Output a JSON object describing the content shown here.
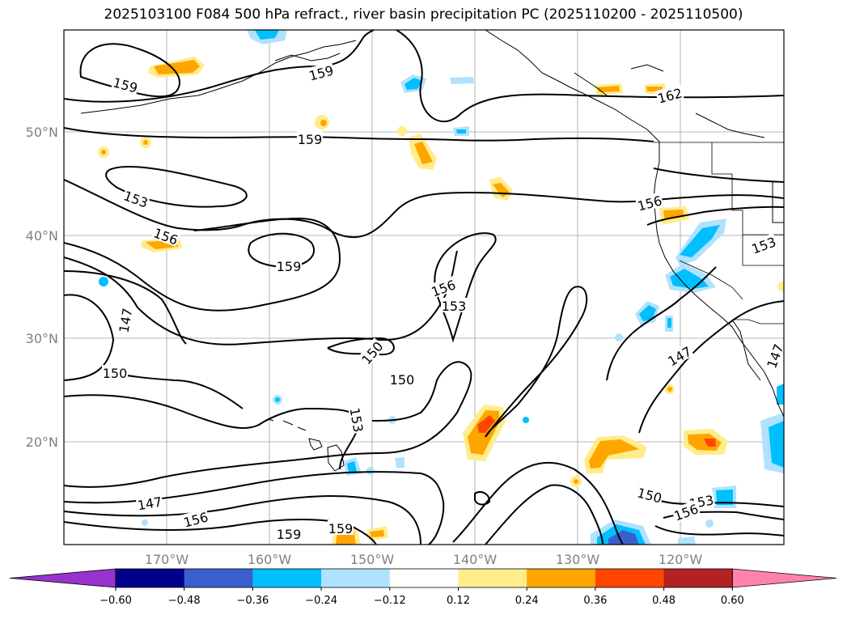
{
  "title": "2025103100 F084 500 hPa refract., river basin precipitation PC (2025110200 - 2025110500)",
  "lat_labels": [
    "50°N",
    "40°N",
    "30°N",
    "20°N"
  ],
  "lon_labels": [
    "170°W",
    "160°W",
    "150°W",
    "140°W",
    "130°W",
    "120°W"
  ],
  "contour_labels": [
    {
      "text": "159",
      "pos": [
        155,
        105
      ],
      "rot": 15
    },
    {
      "text": "159",
      "pos": [
        397,
        90
      ],
      "rot": -15
    },
    {
      "text": "162",
      "pos": [
        828,
        118
      ],
      "rot": -15
    },
    {
      "text": "159",
      "pos": [
        383,
        172
      ],
      "rot": 0
    },
    {
      "text": "153",
      "pos": [
        168,
        246
      ],
      "rot": 20
    },
    {
      "text": "156",
      "pos": [
        205,
        292
      ],
      "rot": 20
    },
    {
      "text": "159",
      "pos": [
        357,
        329
      ],
      "rot": 0
    },
    {
      "text": "156",
      "pos": [
        803,
        251
      ],
      "rot": -15
    },
    {
      "text": "153",
      "pos": [
        944,
        303
      ],
      "rot": -20
    },
    {
      "text": "156",
      "pos": [
        548,
        356
      ],
      "rot": -20
    },
    {
      "text": "153",
      "pos": [
        561,
        378
      ],
      "rot": 0
    },
    {
      "text": "147",
      "pos": [
        155,
        396
      ],
      "rot": -80
    },
    {
      "text": "150",
      "pos": [
        460,
        436
      ],
      "rot": -50
    },
    {
      "text": "150",
      "pos": [
        142,
        461
      ],
      "rot": 0
    },
    {
      "text": "150",
      "pos": [
        497,
        469
      ],
      "rot": 0
    },
    {
      "text": "147",
      "pos": [
        840,
        440
      ],
      "rot": -30
    },
    {
      "text": "147",
      "pos": [
        958,
        440
      ],
      "rot": -70
    },
    {
      "text": "153",
      "pos": [
        441,
        519
      ],
      "rot": 80
    },
    {
      "text": "147",
      "pos": [
        185,
        622
      ],
      "rot": -10
    },
    {
      "text": "156",
      "pos": [
        242,
        642
      ],
      "rot": -15
    },
    {
      "text": "150",
      "pos": [
        803,
        612
      ],
      "rot": 15
    },
    {
      "text": "153",
      "pos": [
        867,
        620
      ],
      "rot": -10
    },
    {
      "text": "156",
      "pos": [
        848,
        633
      ],
      "rot": -20
    },
    {
      "text": "159",
      "pos": [
        357,
        660
      ],
      "rot": 0
    },
    {
      "text": "159",
      "pos": [
        421,
        653
      ],
      "rot": 0
    }
  ],
  "colorbar": {
    "ticks": [
      "−0.60",
      "−0.48",
      "−0.36",
      "−0.24",
      "−0.12",
      "0.12",
      "0.24",
      "0.36",
      "0.48",
      "0.60"
    ],
    "colors": [
      "#9932cc",
      "#00008b",
      "#3a5fcd",
      "#00bfff",
      "#b0e2ff",
      "#ffffff",
      "#ffec8b",
      "#ffa500",
      "#ff4500",
      "#b22222",
      "#ff82ab"
    ]
  }
}
